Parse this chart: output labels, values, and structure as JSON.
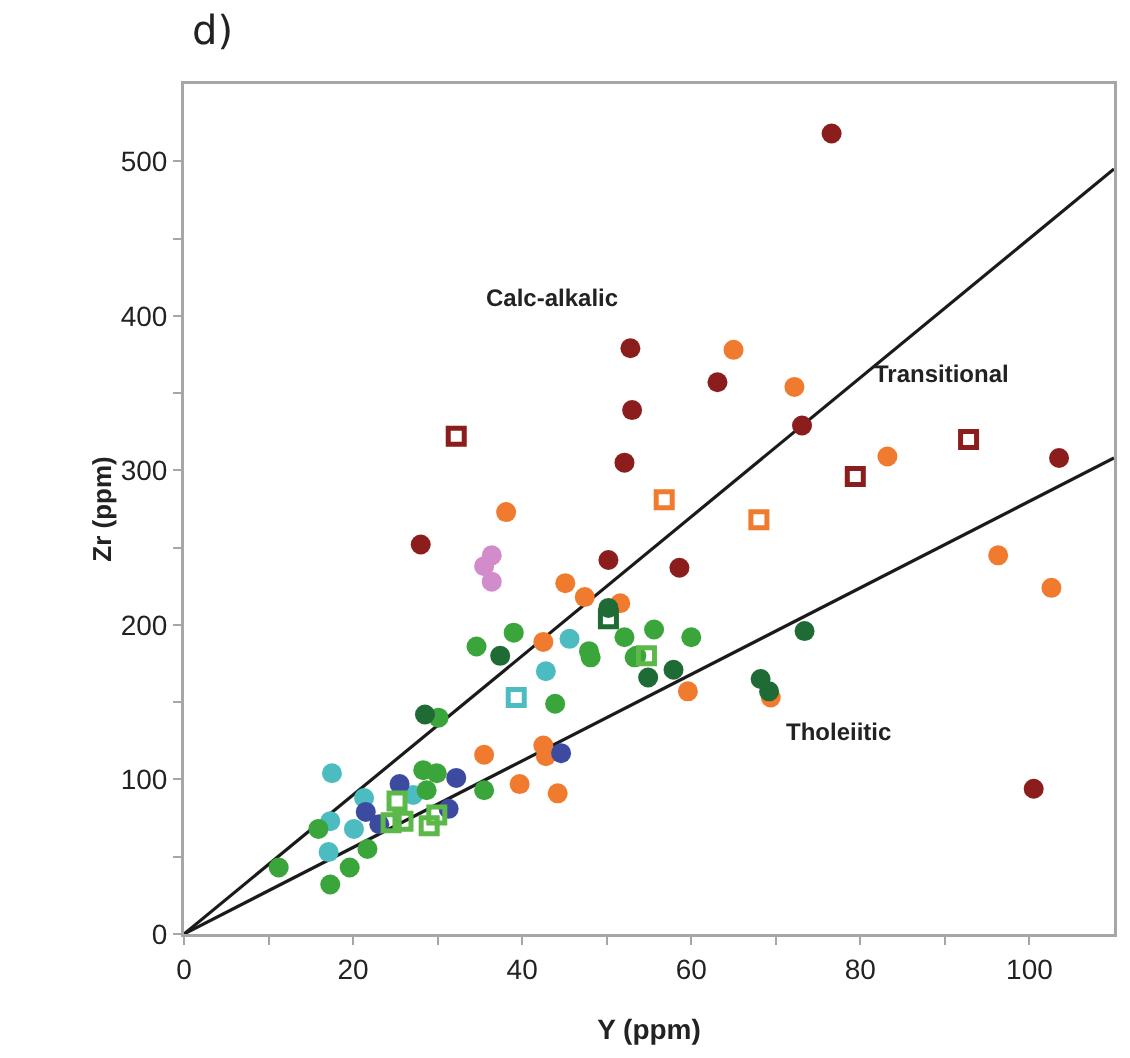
{
  "chart_data": {
    "type": "scatter",
    "title": "d)",
    "xlabel": "Y (ppm)",
    "ylabel": "Zr (ppm)",
    "xlim": [
      0,
      110
    ],
    "ylim": [
      0,
      550
    ],
    "xticks": [
      0,
      {
        "value": 10,
        "label": null
      },
      20,
      {
        "value": 30,
        "label": null
      },
      40,
      {
        "value": 50,
        "label": null
      },
      60,
      {
        "value": 70,
        "label": null
      },
      80,
      {
        "value": 90,
        "label": null
      },
      100
    ],
    "yticks": [
      0,
      {
        "value": 50,
        "label": null
      },
      100,
      {
        "value": 150,
        "label": null
      },
      200,
      {
        "value": 250,
        "label": null
      },
      300,
      {
        "value": 350,
        "label": null
      },
      400,
      {
        "value": 450,
        "label": null
      },
      500
    ],
    "grid": false,
    "annotations": [
      "Calc-alkalic",
      "Transitional",
      "Tholeiitic"
    ],
    "series": [
      {
        "type": "line",
        "color": "#1a1a1a",
        "marker": "none",
        "line_style": "solid",
        "x": [
          0,
          110
        ],
        "values": [
          0,
          495
        ]
      },
      {
        "type": "line",
        "color": "#1a1a1a",
        "marker": "none",
        "line_style": "solid",
        "x": [
          0,
          110
        ],
        "values": [
          0,
          308
        ]
      },
      {
        "color": "#8b1d1d",
        "marker": "circle",
        "x": [
          76.6,
          52.8,
          53,
          52.1,
          63.1,
          73.1,
          103.5,
          28,
          58.6,
          100.5,
          50.2
        ],
        "values": [
          518,
          379,
          339,
          305,
          357,
          329,
          308,
          252,
          237,
          94,
          242
        ]
      },
      {
        "color": "#8b1d1d",
        "marker": "square",
        "x": [
          32.2,
          79.4,
          92.8
        ],
        "values": [
          322,
          296,
          320
        ]
      },
      {
        "color": "#f07b2e",
        "marker": "circle",
        "x": [
          38.1,
          65,
          72.2,
          83.2,
          96.3,
          102.6,
          59.6,
          69.4,
          45.1,
          47.4,
          51.6,
          42.5,
          35.5,
          42.5,
          42.8,
          39.7,
          44.2
        ],
        "values": [
          273,
          378,
          354,
          309,
          245,
          224,
          157,
          153,
          227,
          218,
          214,
          189,
          116,
          122,
          115,
          97,
          91
        ]
      },
      {
        "color": "#f07b2e",
        "marker": "square",
        "x": [
          56.8,
          68
        ],
        "values": [
          281,
          268
        ]
      },
      {
        "color": "#d38ccb",
        "marker": "circle",
        "x": [
          36.4,
          35.5,
          36.4
        ],
        "values": [
          245,
          238,
          228
        ]
      },
      {
        "color": "#4cbcc0",
        "marker": "circle",
        "x": [
          17.5,
          21.3,
          17.3,
          20.1,
          17.1,
          27.1,
          45.6,
          42.8
        ],
        "values": [
          104,
          88,
          73,
          68,
          53,
          90,
          191,
          170
        ]
      },
      {
        "color": "#4cbcc0",
        "marker": "square",
        "x": [
          39.3
        ],
        "values": [
          153
        ]
      },
      {
        "color": "#3c4aa0",
        "marker": "circle",
        "x": [
          25.5,
          21.5,
          23.1,
          32.2,
          31.3,
          44.6
        ],
        "values": [
          97,
          79,
          71,
          101,
          81,
          117
        ]
      },
      {
        "color": "#3aa53a",
        "marker": "circle",
        "x": [
          11.2,
          17.3,
          19.6,
          21.7,
          15.9,
          28.7,
          28.3,
          29.9,
          35.5,
          30.1,
          34.6,
          39,
          43.9,
          47.9,
          48.1,
          52.1,
          53.3,
          55.6,
          60,
          53.5
        ],
        "values": [
          43,
          32,
          43,
          55,
          68,
          93,
          106,
          104,
          93,
          140,
          186,
          195,
          149,
          183,
          179,
          192,
          179,
          197,
          192,
          180
        ]
      },
      {
        "color": "#5cb848",
        "marker": "square",
        "x": [
          25.2,
          25.9,
          24.5,
          29,
          29.9,
          54.7
        ],
        "values": [
          86,
          73,
          72,
          70,
          77,
          180
        ]
      },
      {
        "color": "#1f6b35",
        "marker": "circle",
        "x": [
          28.5,
          37.4,
          50.2,
          54.9,
          57.9,
          73.4,
          68.2,
          69.2
        ],
        "values": [
          142,
          180,
          211,
          166,
          171,
          196,
          165,
          157
        ]
      },
      {
        "color": "#1f6b35",
        "marker": "square",
        "x": [
          50.2
        ],
        "values": [
          204
        ]
      }
    ]
  }
}
